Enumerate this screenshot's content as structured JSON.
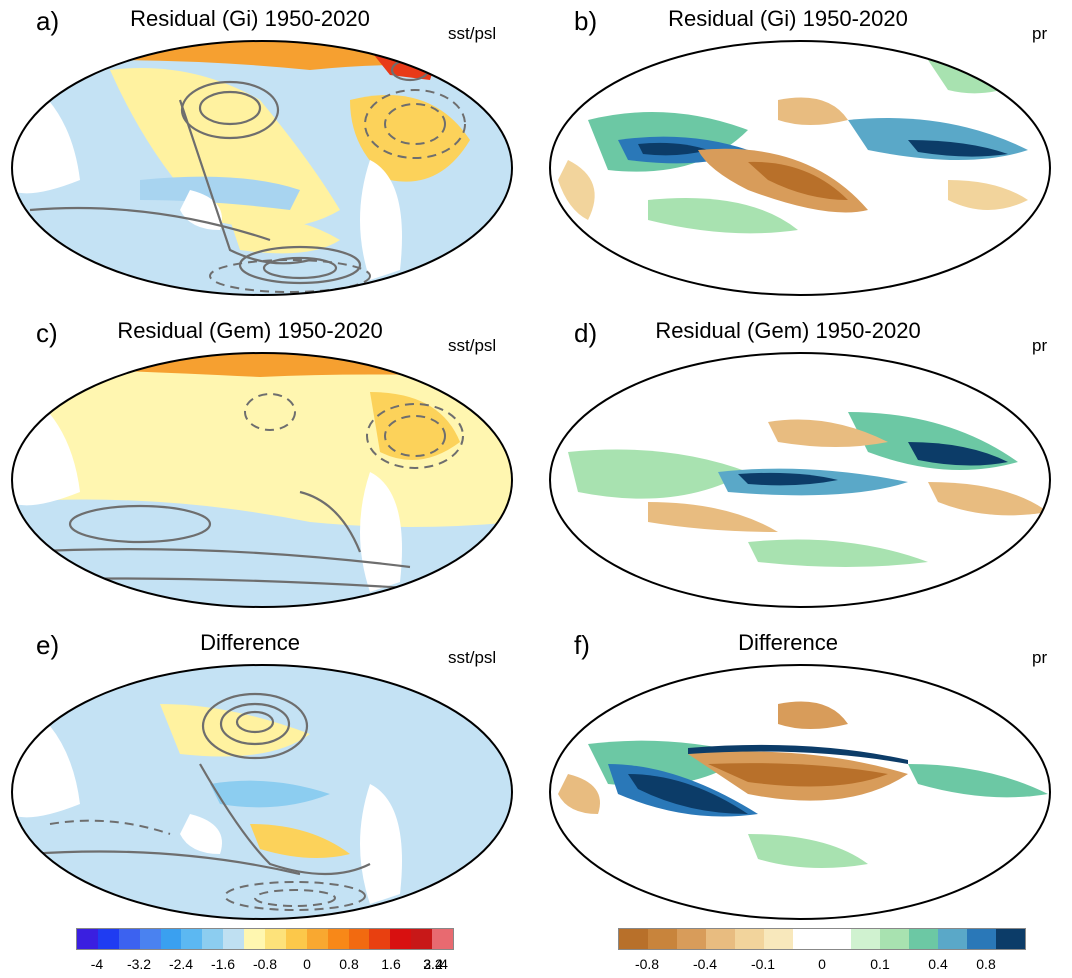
{
  "panels": [
    {
      "label": "a)",
      "title": "Residual (Gi) 1950-2020",
      "variable": "sst/psl"
    },
    {
      "label": "b)",
      "title": "Residual (Gi) 1950-2020",
      "variable": "pr"
    },
    {
      "label": "c)",
      "title": "Residual (Gem) 1950-2020",
      "variable": "sst/psl"
    },
    {
      "label": "d)",
      "title": "Residual (Gem) 1950-2020",
      "variable": "pr"
    },
    {
      "label": "e)",
      "title": "Difference",
      "variable": "sst/psl"
    },
    {
      "label": "f)",
      "title": "Difference",
      "variable": "pr"
    }
  ],
  "colorbars": {
    "sst": {
      "colors": [
        "#3a1fe0",
        "#1f3cf2",
        "#3c62f0",
        "#4a82f0",
        "#3aa0f0",
        "#5cb8f2",
        "#8ccdf0",
        "#bfe0f2",
        "#fff7b0",
        "#fde27a",
        "#fcc84a",
        "#f9a830",
        "#f88818",
        "#f26a10",
        "#e84010",
        "#d81010",
        "#c81818",
        "#e86a70"
      ],
      "ticks": [
        "-4",
        "-3.2",
        "-2.4",
        "-1.6",
        "-0.8",
        "0",
        "0.8",
        "1.6",
        "2.4",
        "3.2",
        "4"
      ]
    },
    "pr": {
      "colors": [
        "#b8702a",
        "#c8843c",
        "#d89c5a",
        "#e8bc80",
        "#f2d49c",
        "#f8e8bc",
        "#ffffff",
        "#ffffff",
        "#d0f2d0",
        "#a8e2b0",
        "#6cc8a4",
        "#5aa8c8",
        "#2a78b8",
        "#0c3c68"
      ],
      "ticks": [
        "-0.8",
        "-0.4",
        "-0.1",
        "0",
        "0.1",
        "0.4",
        "0.8"
      ]
    }
  }
}
